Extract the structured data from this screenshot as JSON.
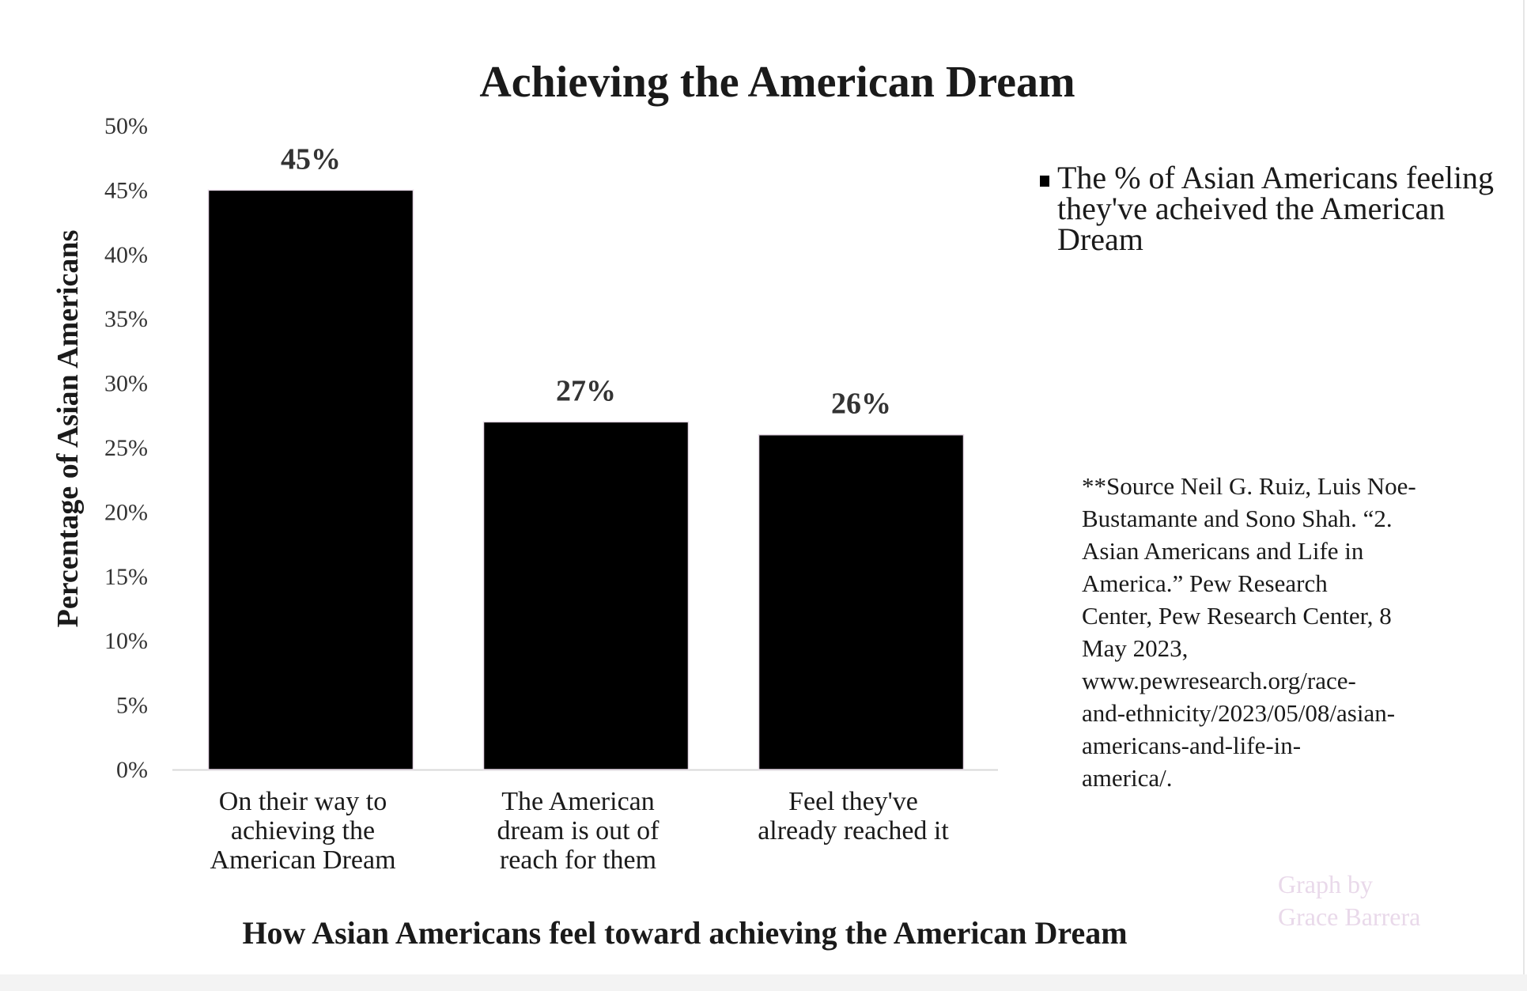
{
  "chart_data": {
    "type": "bar",
    "title": "Achieving the American Dream",
    "xlabel": "How Asian Americans feel toward achieving the American Dream",
    "ylabel": "Percentage of Asian Americans",
    "categories": [
      [
        "On their way to",
        "achieving the",
        "American Dream"
      ],
      [
        "The American",
        "dream is out of",
        "reach for them"
      ],
      [
        "Feel they've",
        "already reached it"
      ]
    ],
    "values": [
      45,
      27,
      26
    ],
    "data_labels": [
      "45%",
      "27%",
      "26%"
    ],
    "ylim": [
      0,
      50
    ],
    "yticks": [
      0,
      5,
      10,
      15,
      20,
      25,
      30,
      35,
      40,
      45,
      50
    ],
    "ytick_labels": [
      "0%",
      "5%",
      "10%",
      "15%",
      "20%",
      "25%",
      "30%",
      "35%",
      "40%",
      "45%",
      "50%"
    ],
    "grid": false,
    "legend": {
      "placement": "right",
      "label": "The % of Asian Americans feeling they've acheived the American Dream"
    },
    "bar_color": "#000000"
  },
  "source_lines": [
    "**Source Neil G. Ruiz, Luis Noe-",
    "Bustamante and Sono Shah. “2.",
    "Asian Americans and Life in",
    "America.” Pew Research",
    "Center, Pew Research Center, 8",
    "May 2023,",
    "www.pewresearch.org/race-",
    "and-ethnicity/2023/05/08/asian-",
    "americans-and-life-in-",
    "america/."
  ],
  "watermark": [
    "Graph by",
    "Grace Barrera"
  ]
}
